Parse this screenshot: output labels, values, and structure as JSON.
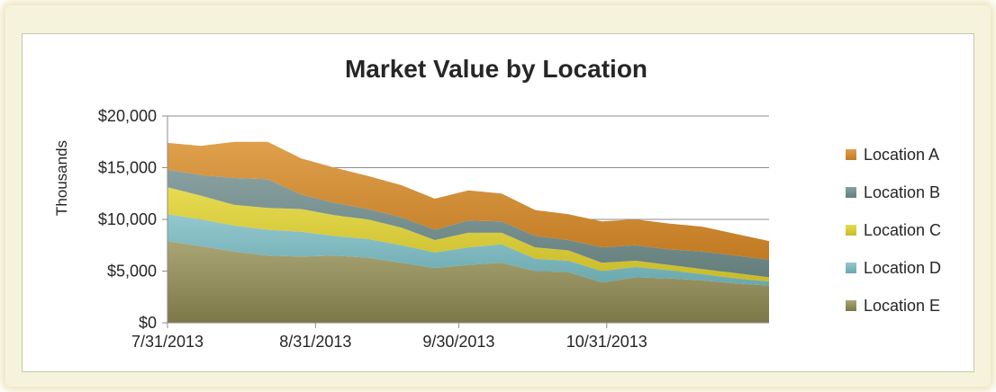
{
  "chart_data": {
    "type": "area",
    "stacked": true,
    "title": "Market Value by Location",
    "xlabel": "",
    "ylabel": "Thousands",
    "ylim": [
      0,
      20000
    ],
    "yticks": [
      0,
      5000,
      10000,
      15000,
      20000
    ],
    "ytick_labels": [
      "$0",
      "$5,000",
      "$10,000",
      "$15,000",
      "$20,000"
    ],
    "x": [
      "7/31/2013",
      "8/7/2013",
      "8/14/2013",
      "8/21/2013",
      "8/28/2013",
      "9/4/2013",
      "9/11/2013",
      "9/18/2013",
      "9/25/2013",
      "10/2/2013",
      "10/9/2013",
      "10/16/2013",
      "10/23/2013",
      "10/30/2013",
      "11/6/2013",
      "11/13/2013",
      "11/20/2013",
      "11/27/2013",
      "12/4/2013"
    ],
    "xtick_labels": [
      "7/31/2013",
      "8/31/2013",
      "9/30/2013",
      "10/31/2013"
    ],
    "xtick_values": [
      "7/31/2013",
      "8/31/2013",
      "9/30/2013",
      "10/31/2013"
    ],
    "grid": true,
    "legend_position": "right",
    "series": [
      {
        "name": "Location A",
        "color": "#d08a30",
        "values": [
          2600,
          2800,
          3500,
          3600,
          3500,
          3400,
          3200,
          3100,
          3000,
          2900,
          2700,
          2500,
          2500,
          2500,
          2500,
          2500,
          2400,
          2100,
          1800
        ]
      },
      {
        "name": "Location B",
        "color": "#728c8a",
        "values": [
          1700,
          2000,
          2600,
          2800,
          1400,
          1200,
          1000,
          1000,
          1000,
          1200,
          1100,
          1100,
          1000,
          1500,
          1500,
          1500,
          1700,
          1700,
          1700
        ]
      },
      {
        "name": "Location C",
        "color": "#d5c832",
        "values": [
          2600,
          2300,
          2000,
          2100,
          2200,
          2000,
          1900,
          1700,
          1200,
          1400,
          1100,
          1100,
          1000,
          800,
          600,
          500,
          500,
          500,
          400
        ]
      },
      {
        "name": "Location D",
        "color": "#7cb9bf",
        "values": [
          2600,
          2600,
          2500,
          2500,
          2400,
          1900,
          1800,
          1700,
          1500,
          1700,
          1800,
          1200,
          1100,
          1100,
          1000,
          800,
          600,
          500,
          400
        ]
      },
      {
        "name": "Location E",
        "color": "#8f8a55",
        "values": [
          7900,
          7400,
          6900,
          6500,
          6400,
          6500,
          6300,
          5800,
          5300,
          5600,
          5800,
          5000,
          4900,
          3900,
          4400,
          4300,
          4100,
          3800,
          3600
        ]
      }
    ]
  }
}
